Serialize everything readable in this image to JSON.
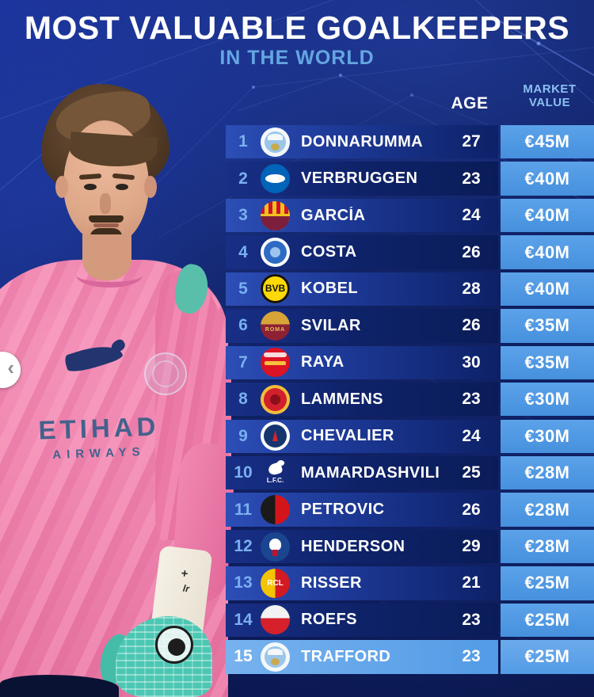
{
  "header": {
    "title": "MOST VALUABLE GOALKEEPERS",
    "subtitle": "IN THE WORLD"
  },
  "columns": {
    "age": "AGE",
    "market_value": "MARKET VALUE"
  },
  "photo": {
    "sponsor_line1": "ETIHAD",
    "sponsor_line2": "AIRWAYS",
    "cuff_symbol": "+",
    "cuff_text": "lr"
  },
  "carousel": {
    "prev_label": "‹"
  },
  "colors": {
    "value_cell": "#4d97e2",
    "row_blue": "#1c3894",
    "row_dark": "#0d2168",
    "highlight_row": "#5da3e8",
    "rank_text": "#79b0f0",
    "header_text": "#8cc0f2"
  },
  "table": {
    "rows": [
      {
        "rank": "1",
        "player": "DONNARUMMA",
        "age": "27",
        "value": "€45M",
        "club": "manchester-city",
        "highlight": false,
        "crest": {
          "style": "city",
          "c1": "#f4f8fb",
          "c2": "#9ac6e9",
          "c3": "#c9a94f",
          "label": "",
          "label_color": ""
        }
      },
      {
        "rank": "2",
        "player": "VERBRUGGEN",
        "age": "23",
        "value": "€40M",
        "club": "brighton",
        "highlight": false,
        "crest": {
          "style": "brighton",
          "c1": "#0064b8",
          "c2": "#ffffff",
          "c3": "",
          "label": "",
          "label_color": ""
        }
      },
      {
        "rank": "3",
        "player": "GARCÍA",
        "age": "24",
        "value": "€40M",
        "club": "barcelona",
        "highlight": false,
        "crest": {
          "style": "barca",
          "c1": "#cf122d",
          "c2": "#f0c21d",
          "c3": "#7d1f3c",
          "label": "",
          "label_color": ""
        }
      },
      {
        "rank": "4",
        "player": "COSTA",
        "age": "26",
        "value": "€40M",
        "club": "porto",
        "highlight": false,
        "crest": {
          "style": "ring",
          "c1": "#2e6bc4",
          "c2": "#ffffff",
          "c3": "#9cc4ee",
          "label": "",
          "label_color": ""
        }
      },
      {
        "rank": "5",
        "player": "KOBEL",
        "age": "28",
        "value": "€40M",
        "club": "borussia-dortmund",
        "highlight": false,
        "crest": {
          "style": "text-badge",
          "c1": "#ffd900",
          "c2": "#111111",
          "c3": "",
          "label": "BVB",
          "label_color": "#111111"
        }
      },
      {
        "rank": "6",
        "player": "SVILAR",
        "age": "26",
        "value": "€35M",
        "club": "roma",
        "highlight": false,
        "crest": {
          "style": "hsplit",
          "c1": "#d8a438",
          "c2": "#8e2034",
          "c3": "",
          "label": "ROMA",
          "label_color": "#e8c05a"
        }
      },
      {
        "rank": "7",
        "player": "RAYA",
        "age": "30",
        "value": "€35M",
        "club": "arsenal",
        "highlight": false,
        "crest": {
          "style": "arsenal",
          "c1": "#dc1324",
          "c2": "#f6c23d",
          "c3": "",
          "label": "",
          "label_color": ""
        }
      },
      {
        "rank": "8",
        "player": "LAMMENS",
        "age": "23",
        "value": "€30M",
        "club": "manchester-united",
        "highlight": false,
        "crest": {
          "style": "ring",
          "c1": "#d2202c",
          "c2": "#f1bf3a",
          "c3": "#8a0f1a",
          "label": "",
          "label_color": ""
        }
      },
      {
        "rank": "9",
        "player": "CHEVALIER",
        "age": "24",
        "value": "€30M",
        "club": "paris-saint-germain",
        "highlight": false,
        "crest": {
          "style": "psg",
          "c1": "#16356e",
          "c2": "#ffffff",
          "c3": "#d8232a",
          "label": "",
          "label_color": ""
        }
      },
      {
        "rank": "10",
        "player": "MAMARDASHVILI",
        "age": "25",
        "value": "€28M",
        "club": "liverpool",
        "highlight": false,
        "crest": {
          "style": "lfc",
          "c1": "",
          "c2": "#ffffff",
          "c3": "",
          "label": "L.F.C.",
          "label_color": "#ffffff"
        }
      },
      {
        "rank": "11",
        "player": "PETROVIC",
        "age": "26",
        "value": "€28M",
        "club": "bournemouth",
        "highlight": false,
        "crest": {
          "style": "vsplit",
          "c1": "#1a1a1a",
          "c2": "#d3151b",
          "c3": "",
          "label": "",
          "label_color": ""
        }
      },
      {
        "rank": "12",
        "player": "HENDERSON",
        "age": "29",
        "value": "€28M",
        "club": "crystal-palace",
        "highlight": false,
        "crest": {
          "style": "palace",
          "c1": "#1b458f",
          "c2": "#c4122e",
          "c3": "#ffffff",
          "label": "",
          "label_color": ""
        }
      },
      {
        "rank": "13",
        "player": "RISSER",
        "age": "21",
        "value": "€25M",
        "club": "lens",
        "highlight": false,
        "crest": {
          "style": "vsplit",
          "c1": "#f5c400",
          "c2": "#d31a22",
          "c3": "",
          "label": "RCL",
          "label_color": "#ffffff"
        }
      },
      {
        "rank": "14",
        "player": "ROEFS",
        "age": "23",
        "value": "€25M",
        "club": "sunderland",
        "highlight": false,
        "crest": {
          "style": "hsplit",
          "c1": "#f2f2f2",
          "c2": "#d6202c",
          "c3": "",
          "label": "",
          "label_color": ""
        }
      },
      {
        "rank": "15",
        "player": "TRAFFORD",
        "age": "23",
        "value": "€25M",
        "club": "manchester-city",
        "highlight": true,
        "crest": {
          "style": "city",
          "c1": "#f4f8fb",
          "c2": "#9ac6e9",
          "c3": "#c9a94f",
          "label": "",
          "label_color": ""
        }
      }
    ]
  }
}
